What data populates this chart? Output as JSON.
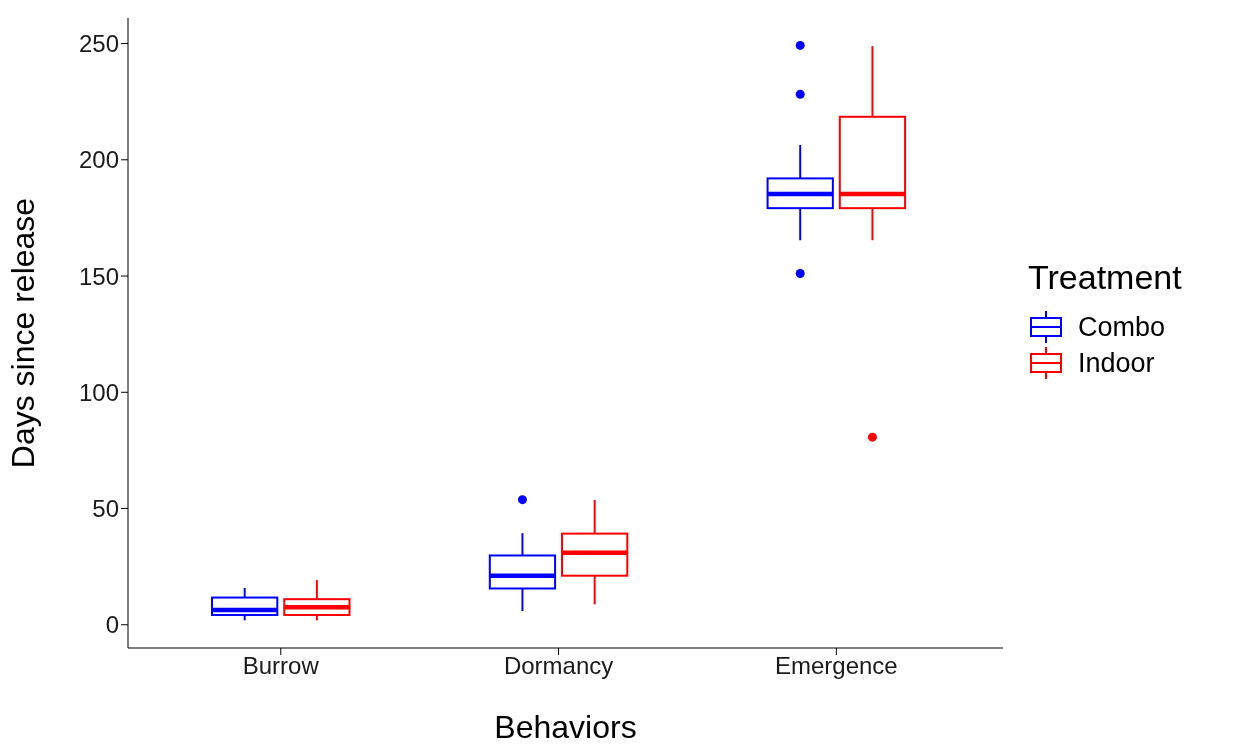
{
  "chart_data": {
    "type": "box",
    "xlabel": "Behaviors",
    "ylabel": "Days since release",
    "legend_title": "Treatment",
    "categories": [
      "Burrow",
      "Dormancy",
      "Emergence"
    ],
    "ylim": [
      -10,
      261
    ],
    "yticks": [
      0,
      50,
      100,
      150,
      200,
      250
    ],
    "legend": "right",
    "series": [
      {
        "name": "Combo",
        "color": "#0000ff",
        "boxes": [
          {
            "low": 1.9,
            "q1": 4.2,
            "median": 6.3,
            "q3": 11.7,
            "high": 15.8
          },
          {
            "low": 5.9,
            "q1": 15.6,
            "median": 21.1,
            "q3": 29.8,
            "high": 39.4,
            "outliers": [
              53.8
            ]
          },
          {
            "low": 165.4,
            "q1": 179.2,
            "median": 185.3,
            "q3": 192,
            "high": 206.4,
            "outliers": [
              249.2,
              228.2,
              151.1
            ]
          }
        ]
      },
      {
        "name": "Indoor",
        "color": "#ff0000",
        "boxes": [
          {
            "low": 1.9,
            "q1": 4.2,
            "median": 7.5,
            "q3": 11,
            "high": 19.2
          },
          {
            "low": 8.8,
            "q1": 21.1,
            "median": 31,
            "q3": 39.2,
            "high": 53.7
          },
          {
            "low": 165.4,
            "q1": 179.2,
            "median": 185.3,
            "q3": 218.5,
            "high": 248.9,
            "outliers": [
              80.7
            ]
          }
        ]
      }
    ]
  }
}
